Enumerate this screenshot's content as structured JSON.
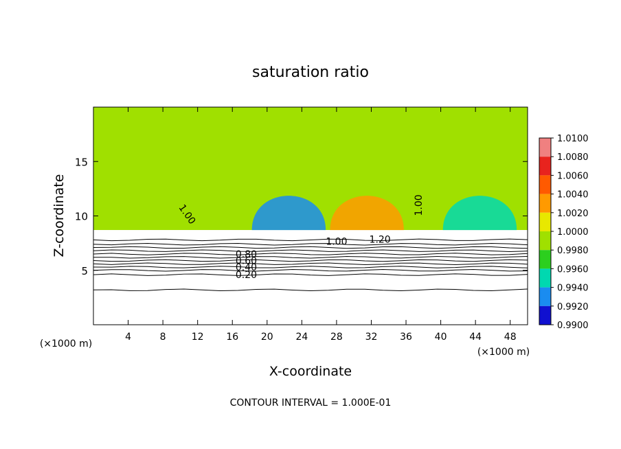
{
  "chart_data": {
    "type": "heatmap",
    "title": "saturation ratio",
    "xlabel": "X-coordinate",
    "ylabel": "Z-coordinate",
    "x_unit": "(×1000 m)",
    "y_unit": "(×1000 m)",
    "xlim": [
      0,
      50
    ],
    "ylim": [
      0,
      20
    ],
    "x_ticks": [
      4,
      8,
      12,
      16,
      20,
      24,
      28,
      32,
      36,
      40,
      44,
      48
    ],
    "y_ticks": [
      5,
      10,
      15
    ],
    "grid": false,
    "colorbar": {
      "placement": "right",
      "levels": [
        1.01,
        1.008,
        1.006,
        1.004,
        1.002,
        1.0,
        0.998,
        0.996,
        0.994,
        0.992,
        0.99
      ],
      "labels": [
        "1.0100",
        "1.0080",
        "1.0060",
        "1.0040",
        "1.0020",
        "1.0000",
        "0.9980",
        "0.9960",
        "0.9940",
        "0.9920",
        "0.9900"
      ],
      "colors": [
        "#f08080",
        "#e8231e",
        "#ff5a00",
        "#ff9a00",
        "#e8e800",
        "#a0e000",
        "#2ccf1e",
        "#00d8b0",
        "#1a8cf0",
        "#1010d0",
        "#6a1a9a"
      ]
    },
    "field": {
      "background_level": 1.0,
      "cloud_base_z": 8.7,
      "columns": [
        {
          "x": 22.5,
          "level": 0.994
        },
        {
          "x": 31.5,
          "level": 1.004
        },
        {
          "x": 44.5,
          "level": 0.996
        }
      ]
    },
    "contours": {
      "interval": 0.1,
      "labels": [
        "1.00",
        "1.00",
        "1.00",
        "1.20",
        "0.80",
        "0.60",
        "0.40",
        "0.20"
      ],
      "levels": [
        {
          "value": 1.2,
          "z": 7.8
        },
        {
          "value": 1.1,
          "z": 7.4
        },
        {
          "value": 1.0,
          "z": 7.1
        },
        {
          "value": 0.9,
          "z": 6.8
        },
        {
          "value": 0.8,
          "z": 6.5
        },
        {
          "value": 0.7,
          "z": 6.2
        },
        {
          "value": 0.6,
          "z": 5.9
        },
        {
          "value": 0.5,
          "z": 5.6
        },
        {
          "value": 0.4,
          "z": 5.3
        },
        {
          "value": 0.3,
          "z": 5.0
        },
        {
          "value": 0.2,
          "z": 4.6
        },
        {
          "value": 0.1,
          "z": 3.2
        }
      ]
    },
    "footer": "CONTOUR INTERVAL = 1.000E-01"
  }
}
